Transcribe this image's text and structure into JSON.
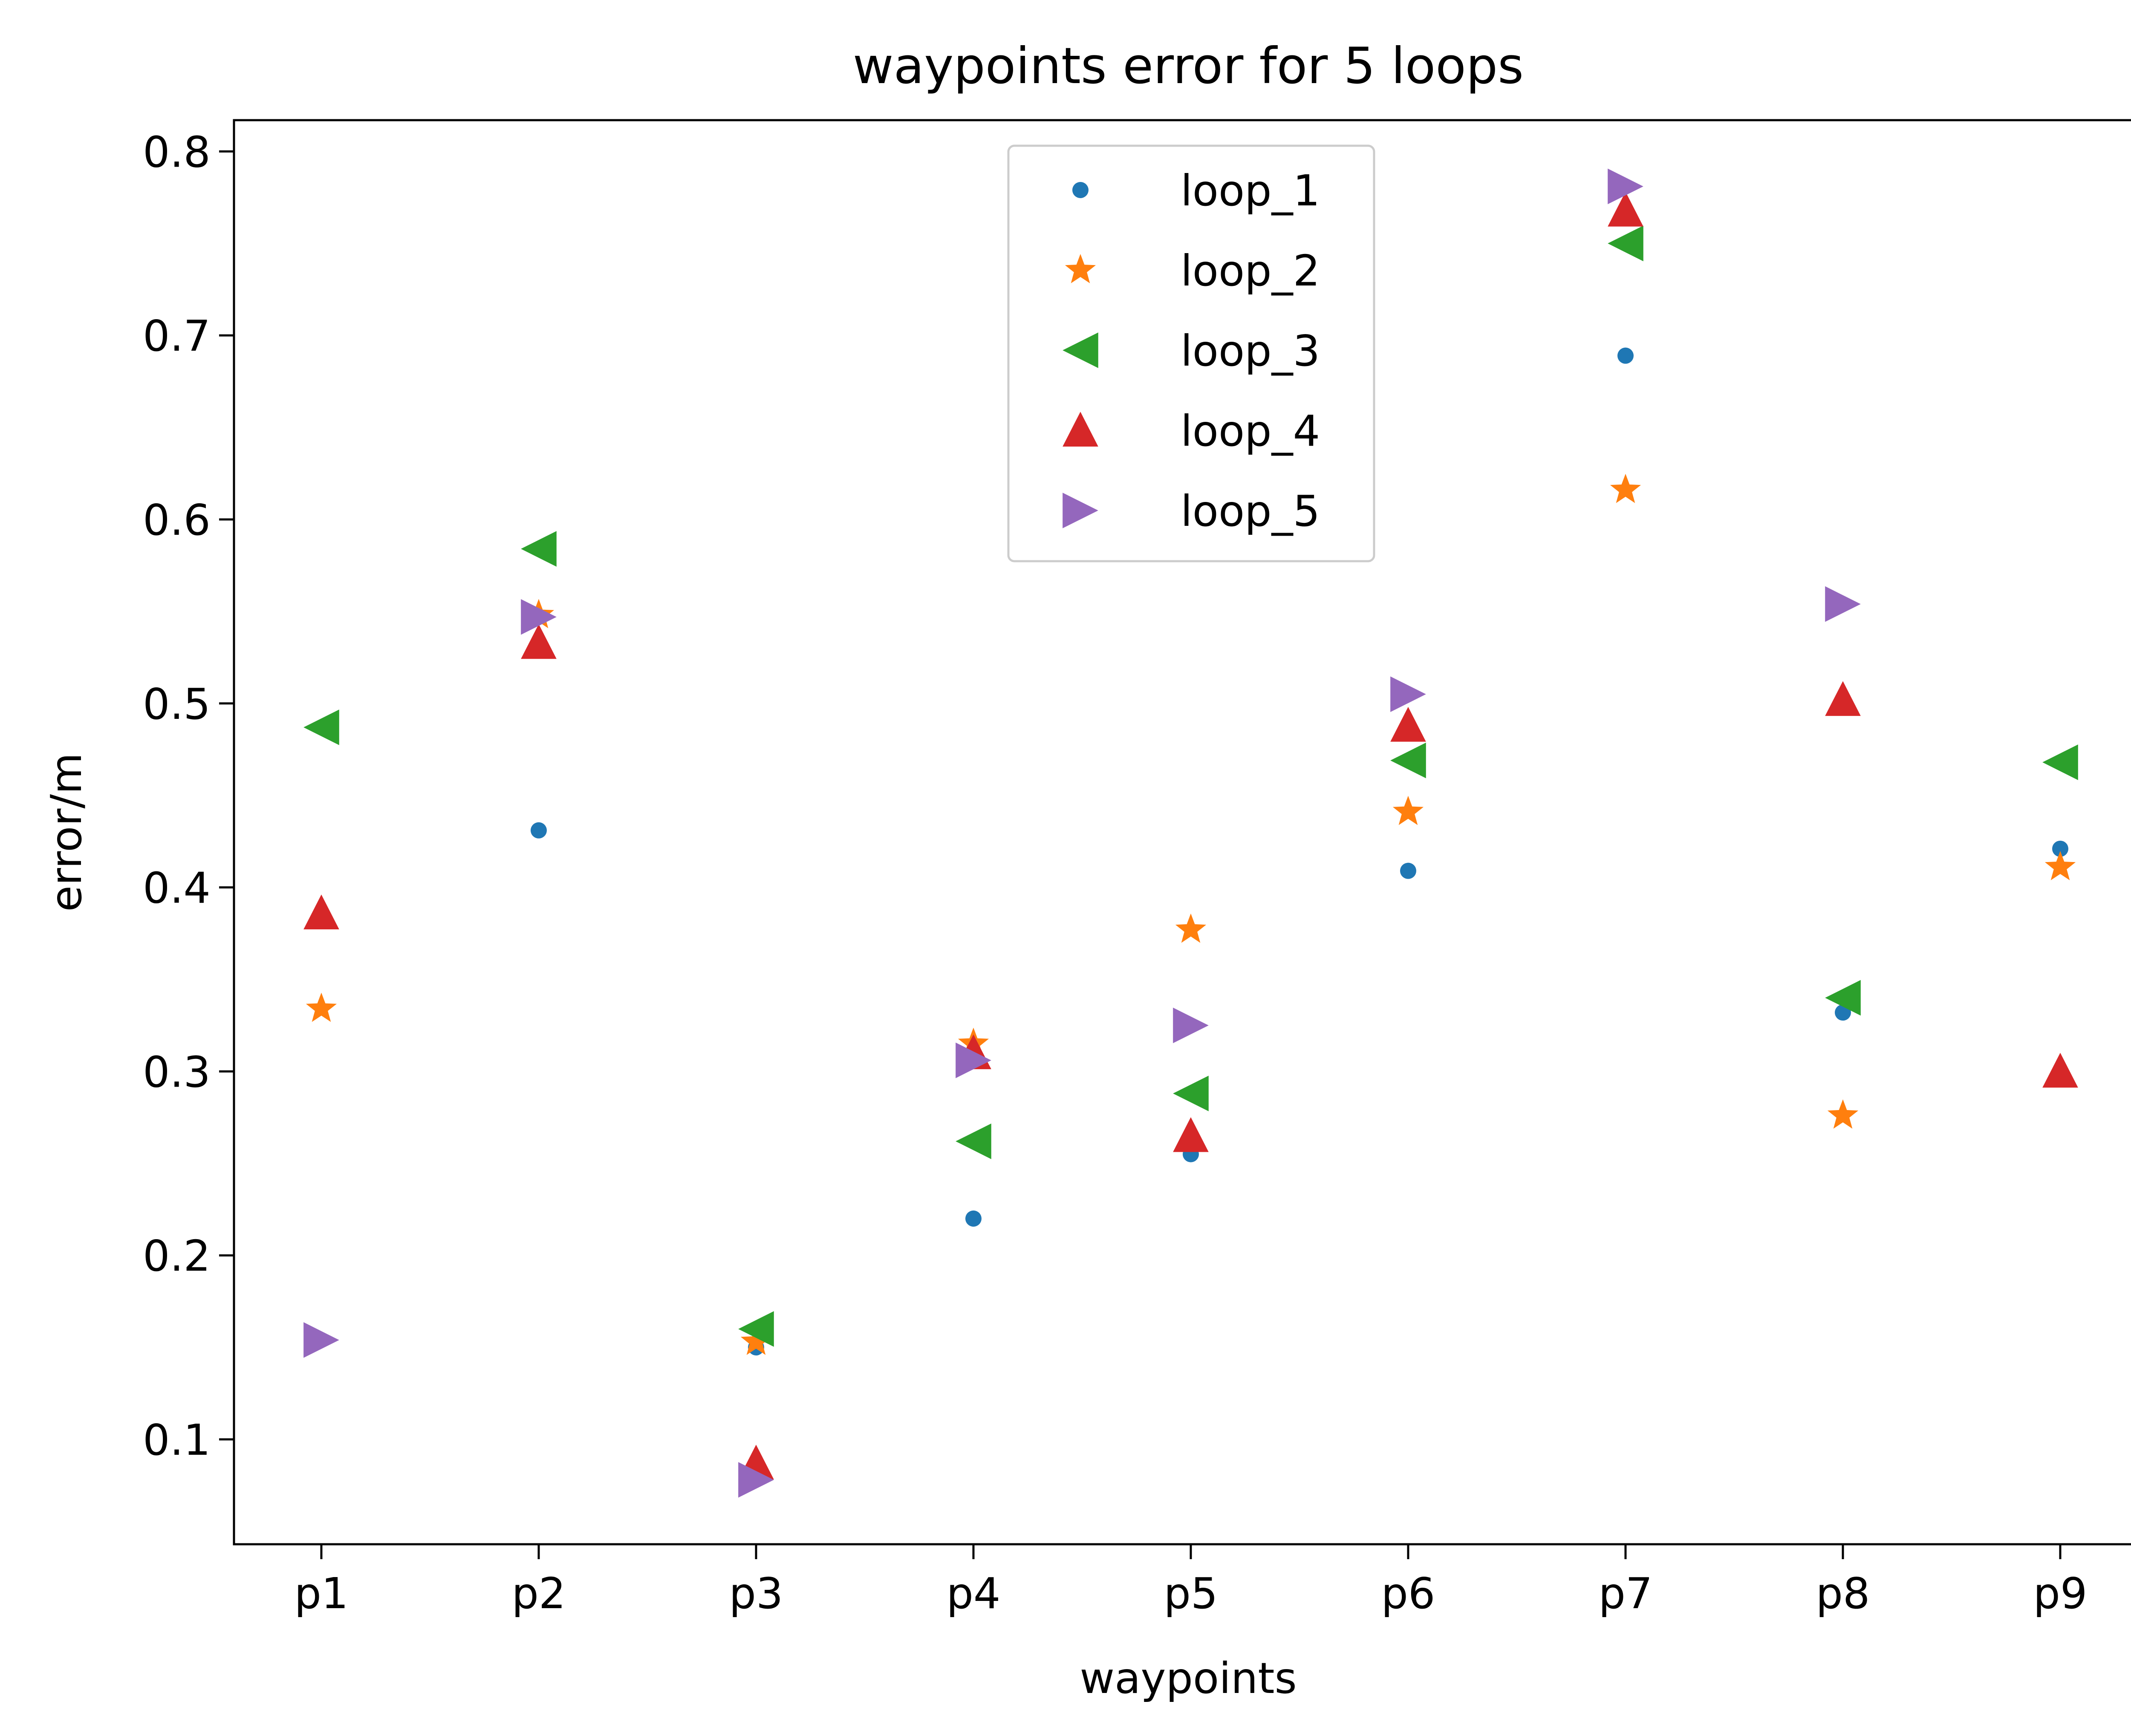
{
  "chart_data": {
    "type": "scatter",
    "title": "waypoints error for 5 loops",
    "xlabel": "waypoints",
    "ylabel": "error/m",
    "categories": [
      "p1",
      "p2",
      "p3",
      "p4",
      "p5",
      "p6",
      "p7",
      "p8",
      "p9"
    ],
    "ylim": [
      0.043,
      0.817
    ],
    "yticks": [
      0.1,
      0.2,
      0.3,
      0.4,
      0.5,
      0.6,
      0.7,
      0.8
    ],
    "ytick_labels": [
      "0.1",
      "0.2",
      "0.3",
      "0.4",
      "0.5",
      "0.6",
      "0.7",
      "0.8"
    ],
    "grid": false,
    "legend_position": "top-center",
    "series": [
      {
        "name": "loop_1",
        "marker": "circle",
        "color": "#1f77b4",
        "values": [
          null,
          0.431,
          0.15,
          0.22,
          0.255,
          0.409,
          0.689,
          0.332,
          0.421
        ]
      },
      {
        "name": "loop_2",
        "marker": "star",
        "color": "#ff7f0e",
        "values": [
          0.334,
          0.548,
          0.153,
          0.315,
          0.377,
          0.441,
          0.616,
          0.276,
          0.411
        ]
      },
      {
        "name": "loop_3",
        "marker": "triangle-left",
        "color": "#2ca02c",
        "values": [
          0.487,
          0.584,
          0.16,
          0.262,
          0.288,
          0.469,
          0.75,
          0.34,
          0.468
        ]
      },
      {
        "name": "loop_4",
        "marker": "triangle-up",
        "color": "#d62728",
        "values": [
          0.386,
          0.533,
          0.087,
          0.31,
          0.265,
          0.488,
          0.768,
          0.502,
          0.3
        ]
      },
      {
        "name": "loop_5",
        "marker": "triangle-right",
        "color": "#9467bd",
        "values": [
          0.154,
          0.547,
          0.078,
          0.306,
          0.325,
          0.505,
          0.781,
          0.554,
          null
        ]
      }
    ]
  }
}
